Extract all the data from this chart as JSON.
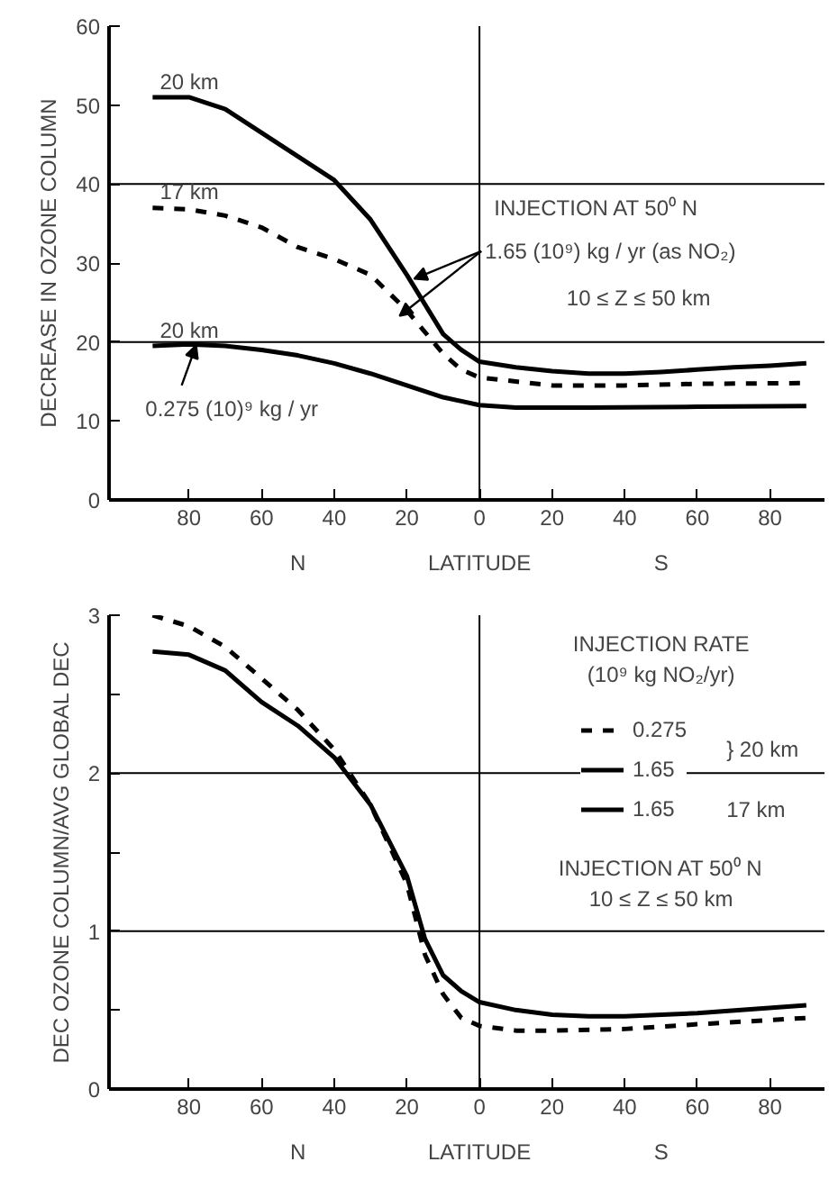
{
  "chart_data": [
    {
      "type": "line",
      "xlabel": "LATITUDE",
      "ylabel": "DECREASE IN OZONE COLUMN",
      "xlim": [
        -102,
        95
      ],
      "ylim": [
        0,
        60
      ],
      "xticks": [
        {
          "value": -80,
          "label": "80"
        },
        {
          "value": -60,
          "label": "60"
        },
        {
          "value": -40,
          "label": "40"
        },
        {
          "value": -20,
          "label": "20"
        },
        0,
        20,
        40,
        60,
        80
      ],
      "yticks": [
        0,
        10,
        20,
        30,
        40,
        50,
        60
      ],
      "grid": false,
      "legend": false,
      "ref_lines": [
        {
          "axis": "y",
          "value": 20
        },
        {
          "axis": "y",
          "value": 40
        },
        {
          "axis": "x",
          "value": 0
        }
      ],
      "annotations": [
        "N",
        "S",
        "INJECTION AT 50⁰ N",
        {
          "text": "1.65 (10⁹) kg / yr (as NO₂)",
          "x": -18,
          "y": 28
        },
        "10 ≤ Z ≤ 50 km",
        {
          "text": "0.275 (10)⁹ kg / yr",
          "x": -78,
          "y": 19.6
        }
      ],
      "series": [
        {
          "name": "20 km",
          "color": "#000000",
          "line_style": "solid",
          "x": [
            -90,
            -80,
            -70,
            -60,
            -50,
            -40,
            -30,
            -20,
            -10,
            -5,
            0,
            10,
            20,
            30,
            40,
            50,
            60,
            70,
            80,
            90
          ],
          "values": [
            51,
            51,
            49.5,
            46.5,
            43.5,
            40.5,
            35.5,
            28.5,
            21,
            19,
            17.5,
            16.8,
            16.3,
            16,
            16,
            16.2,
            16.5,
            16.8,
            17,
            17.3
          ]
        },
        {
          "name": "17 km",
          "color": "#000000",
          "line_style": "dashed",
          "x": [
            -90,
            -80,
            -70,
            -60,
            -50,
            -40,
            -30,
            -20,
            -10,
            -5,
            0,
            10,
            20,
            40,
            60,
            90
          ],
          "values": [
            37,
            36.8,
            36,
            34.5,
            32,
            30.5,
            28.5,
            24,
            18.5,
            16.5,
            15.5,
            15,
            14.5,
            14.5,
            14.7,
            14.8
          ]
        },
        {
          "name": "20 km",
          "color": "#000000",
          "line_style": "solid",
          "x": [
            -90,
            -80,
            -70,
            -60,
            -50,
            -40,
            -30,
            -20,
            -10,
            0,
            10,
            30,
            60,
            90
          ],
          "values": [
            19.5,
            19.7,
            19.5,
            19,
            18.3,
            17.3,
            16,
            14.5,
            13,
            12,
            11.7,
            11.7,
            11.8,
            11.9
          ]
        }
      ]
    },
    {
      "type": "line",
      "xlabel": "LATITUDE",
      "ylabel": "DEC OZONE COLUMN/AVG GLOBAL DEC",
      "xlim": [
        -102,
        95
      ],
      "ylim": [
        0,
        3
      ],
      "xticks": [
        {
          "value": -80,
          "label": "80"
        },
        {
          "value": -60,
          "label": "60"
        },
        {
          "value": -40,
          "label": "40"
        },
        {
          "value": -20,
          "label": "20"
        },
        0,
        20,
        40,
        60,
        80
      ],
      "yticks": [
        0,
        {
          "value": 0.5,
          "label": null
        },
        1,
        {
          "value": 1.5,
          "label": null
        },
        2,
        {
          "value": 2.5,
          "label": null
        },
        3
      ],
      "grid": false,
      "legend": "top right",
      "legend_title": "INJECTION RATE\n(10⁹ kg NO₂/yr)",
      "ref_lines": [
        {
          "axis": "y",
          "value": 1
        },
        {
          "axis": "y",
          "value": 2
        },
        {
          "axis": "x",
          "value": 0
        }
      ],
      "annotations": [
        "N",
        "S",
        "INJECTION AT 50⁰ N\n10 ≤ Z ≤ 50 km",
        "1.65",
        "} 20 km",
        "17 km"
      ],
      "series": [
        {
          "name": "0.275",
          "color": "#000000",
          "line_style": "dashed",
          "x": [
            -90,
            -80,
            -70,
            -60,
            -50,
            -40,
            -30,
            -20,
            -15,
            -10,
            -5,
            0,
            10,
            20,
            40,
            60,
            90
          ],
          "values": [
            3.0,
            2.93,
            2.8,
            2.6,
            2.4,
            2.15,
            1.8,
            1.3,
            0.85,
            0.6,
            0.45,
            0.4,
            0.37,
            0.37,
            0.38,
            0.41,
            0.45
          ]
        },
        {
          "name": "1.65",
          "color": "#000000",
          "line_style": "solid",
          "x": [
            -90,
            -80,
            -70,
            -60,
            -50,
            -40,
            -30,
            -20,
            -15,
            -10,
            -5,
            0,
            10,
            20,
            30,
            40,
            60,
            90
          ],
          "values": [
            2.77,
            2.75,
            2.65,
            2.45,
            2.3,
            2.1,
            1.8,
            1.35,
            0.95,
            0.72,
            0.62,
            0.55,
            0.5,
            0.47,
            0.46,
            0.46,
            0.48,
            0.53
          ]
        }
      ]
    }
  ]
}
